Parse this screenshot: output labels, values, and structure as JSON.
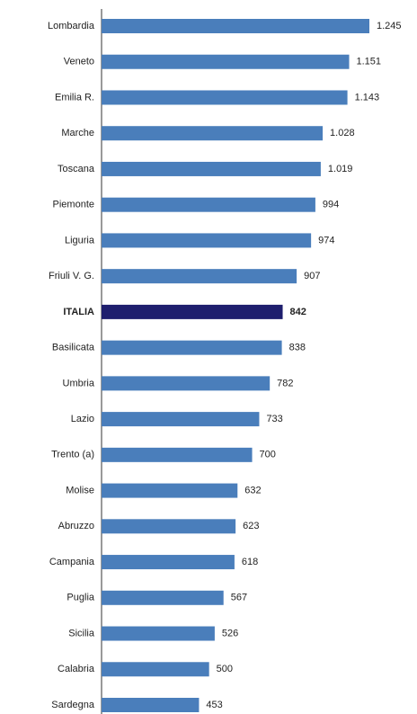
{
  "chart_data": {
    "type": "bar",
    "orientation": "horizontal",
    "categories": [
      "Lombardia",
      "Veneto",
      "Emilia R.",
      "Marche",
      "Toscana",
      "Piemonte",
      "Liguria",
      "Friuli V. G.",
      "ITALIA",
      "Basilicata",
      "Umbria",
      "Lazio",
      "Trento (a)",
      "Molise",
      "Abruzzo",
      "Campania",
      "Puglia",
      "Sicilia",
      "Calabria",
      "Sardegna"
    ],
    "values": [
      1245,
      1151,
      1143,
      1028,
      1019,
      994,
      974,
      907,
      842,
      838,
      782,
      733,
      700,
      632,
      623,
      618,
      567,
      526,
      500,
      453
    ],
    "value_labels": [
      "1.245",
      "1.151",
      "1.143",
      "1.028",
      "1.019",
      "994",
      "974",
      "907",
      "842",
      "838",
      "782",
      "733",
      "700",
      "632",
      "623",
      "618",
      "567",
      "526",
      "500",
      "453"
    ],
    "color": "#4a7ebb",
    "highlight": {
      "category": "ITALIA",
      "color": "#1f1f6e"
    }
  }
}
